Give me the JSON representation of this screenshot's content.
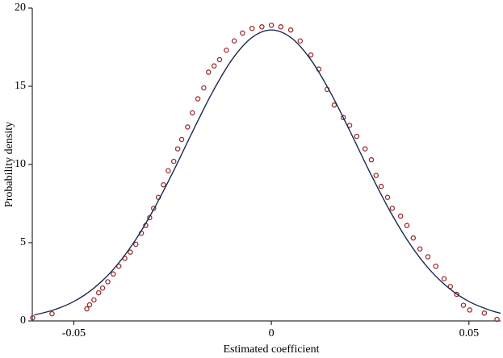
{
  "chart_data": {
    "type": "scatter",
    "xlabel": "Estimated coefficient",
    "ylabel": "Probability density",
    "xlim": [
      -0.0605,
      0.058
    ],
    "ylim": [
      0,
      20
    ],
    "xticks": [
      -0.05,
      0,
      0.05
    ],
    "yticks": [
      0,
      5,
      10,
      15,
      20
    ],
    "grid": false,
    "series": [
      {
        "mode": "markers",
        "color": "#9b2d30",
        "x": [
          -0.0604,
          -0.0555,
          -0.0467,
          -0.046,
          -0.0449,
          -0.0437,
          -0.0427,
          -0.0414,
          -0.04,
          -0.0386,
          -0.0371,
          -0.0357,
          -0.0343,
          -0.0329,
          -0.0318,
          -0.0308,
          -0.0298,
          -0.0286,
          -0.0273,
          -0.0261,
          -0.0247,
          -0.0237,
          -0.0227,
          -0.0212,
          -0.02,
          -0.0186,
          -0.0171,
          -0.0159,
          -0.0145,
          -0.0131,
          -0.0114,
          -0.0094,
          -0.0073,
          -0.0049,
          -0.0024,
          0,
          0.0024,
          0.0049,
          0.0073,
          0.01,
          0.012,
          0.0141,
          0.0159,
          0.0182,
          0.0198,
          0.0216,
          0.0237,
          0.0253,
          0.0265,
          0.0278,
          0.0294,
          0.0306,
          0.0327,
          0.0343,
          0.0359,
          0.0376,
          0.0396,
          0.0416,
          0.0437,
          0.0453,
          0.0469,
          0.0486,
          0.0502,
          0.0539,
          0.0571
        ],
        "values": [
          0.2,
          0.46,
          0.77,
          1.03,
          1.34,
          1.8,
          2.1,
          2.5,
          3.0,
          3.5,
          4.0,
          4.4,
          4.9,
          5.6,
          6.1,
          6.6,
          7.2,
          7.9,
          8.7,
          9.6,
          10.2,
          11.0,
          11.6,
          12.4,
          13.3,
          14.2,
          14.9,
          15.9,
          16.3,
          16.7,
          17.3,
          17.9,
          18.4,
          18.7,
          18.8,
          18.9,
          18.8,
          18.6,
          17.9,
          17.0,
          16.1,
          14.8,
          13.8,
          13.0,
          12.5,
          11.8,
          11.0,
          10.3,
          9.3,
          8.6,
          7.9,
          7.2,
          6.7,
          6.1,
          5.3,
          4.6,
          4.1,
          3.5,
          2.7,
          2.2,
          1.7,
          1.0,
          0.7,
          0.5,
          0.1
        ]
      },
      {
        "mode": "lines",
        "color": "#1b2a4e",
        "x": [
          -0.06,
          -0.055,
          -0.05,
          -0.045,
          -0.04,
          -0.035,
          -0.03,
          -0.025,
          -0.02,
          -0.015,
          -0.01,
          -0.005,
          0,
          0.005,
          0.01,
          0.015,
          0.02,
          0.025,
          0.03,
          0.035,
          0.04,
          0.045,
          0.05,
          0.055,
          0.058
        ],
        "values": [
          0.38,
          0.71,
          1.24,
          2.08,
          3.29,
          4.94,
          7.03,
          9.46,
          12.07,
          14.58,
          16.69,
          18.1,
          18.6,
          18.1,
          16.69,
          14.58,
          12.07,
          9.46,
          7.03,
          4.94,
          3.29,
          2.08,
          1.24,
          0.71,
          0.49
        ]
      }
    ]
  }
}
